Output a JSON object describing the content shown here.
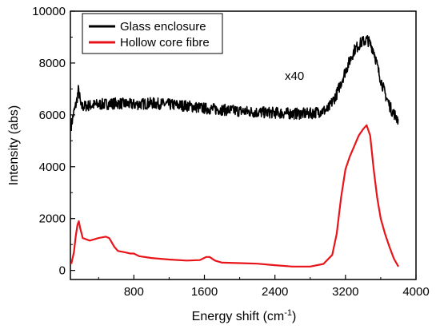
{
  "chart_data": {
    "type": "line",
    "xlabel_base": "Energy shift (cm",
    "xlabel_sup": "-1",
    "xlabel_close": ")",
    "ylabel": "Intensity (abs)",
    "xlim": [
      80,
      4000
    ],
    "ylim": [
      -350,
      10000
    ],
    "xticks": [
      800,
      1600,
      2400,
      3200,
      4000
    ],
    "yticks": [
      0,
      2000,
      4000,
      6000,
      8000,
      10000
    ],
    "annotation": "x40",
    "legend_position": "top-left",
    "series": [
      {
        "name": "Glass enclosure",
        "color": "#000000",
        "noise": 220,
        "points": [
          [
            90,
            5600
          ],
          [
            120,
            6100
          ],
          [
            150,
            6500
          ],
          [
            170,
            6950
          ],
          [
            185,
            6700
          ],
          [
            200,
            6300
          ],
          [
            260,
            6350
          ],
          [
            400,
            6400
          ],
          [
            600,
            6450
          ],
          [
            800,
            6400
          ],
          [
            1000,
            6450
          ],
          [
            1200,
            6400
          ],
          [
            1400,
            6350
          ],
          [
            1600,
            6250
          ],
          [
            1800,
            6200
          ],
          [
            2000,
            6150
          ],
          [
            2200,
            6100
          ],
          [
            2400,
            6080
          ],
          [
            2600,
            6050
          ],
          [
            2800,
            6050
          ],
          [
            3000,
            6200
          ],
          [
            3100,
            6800
          ],
          [
            3200,
            7700
          ],
          [
            3300,
            8500
          ],
          [
            3380,
            8800
          ],
          [
            3450,
            8900
          ],
          [
            3520,
            8500
          ],
          [
            3580,
            7600
          ],
          [
            3650,
            6800
          ],
          [
            3720,
            6200
          ],
          [
            3800,
            5800
          ]
        ]
      },
      {
        "name": "Hollow core fibre",
        "color": "#e8141a",
        "noise": 0,
        "points": [
          [
            90,
            250
          ],
          [
            120,
            700
          ],
          [
            140,
            1300
          ],
          [
            160,
            1750
          ],
          [
            175,
            1900
          ],
          [
            190,
            1650
          ],
          [
            220,
            1250
          ],
          [
            300,
            1150
          ],
          [
            400,
            1250
          ],
          [
            480,
            1300
          ],
          [
            520,
            1250
          ],
          [
            580,
            900
          ],
          [
            620,
            750
          ],
          [
            700,
            700
          ],
          [
            760,
            650
          ],
          [
            800,
            650
          ],
          [
            860,
            550
          ],
          [
            1000,
            480
          ],
          [
            1200,
            420
          ],
          [
            1400,
            380
          ],
          [
            1550,
            400
          ],
          [
            1620,
            520
          ],
          [
            1660,
            520
          ],
          [
            1720,
            380
          ],
          [
            1800,
            300
          ],
          [
            2000,
            280
          ],
          [
            2200,
            260
          ],
          [
            2400,
            200
          ],
          [
            2600,
            150
          ],
          [
            2800,
            150
          ],
          [
            2950,
            250
          ],
          [
            3050,
            600
          ],
          [
            3100,
            1400
          ],
          [
            3150,
            2800
          ],
          [
            3200,
            3900
          ],
          [
            3250,
            4400
          ],
          [
            3300,
            4800
          ],
          [
            3350,
            5200
          ],
          [
            3400,
            5450
          ],
          [
            3440,
            5600
          ],
          [
            3480,
            5200
          ],
          [
            3520,
            3900
          ],
          [
            3560,
            2800
          ],
          [
            3600,
            2000
          ],
          [
            3650,
            1400
          ],
          [
            3700,
            900
          ],
          [
            3750,
            450
          ],
          [
            3800,
            150
          ]
        ]
      }
    ]
  }
}
